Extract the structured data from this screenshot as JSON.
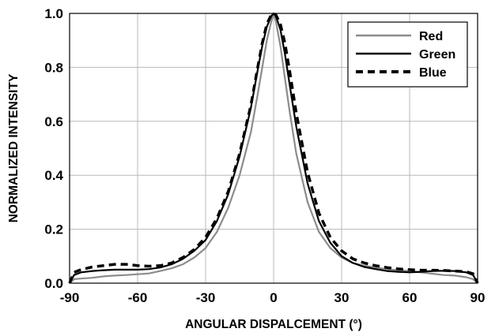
{
  "chart_data": {
    "type": "line",
    "title": "",
    "xlabel": "ANGULAR DISPALCEMENT (°)",
    "ylabel": "NORMALIZED INTENSITY",
    "xlim": [
      -90,
      90
    ],
    "ylim": [
      0,
      1
    ],
    "xticks": [
      "-90",
      "-60",
      "-30",
      "0",
      "30",
      "60",
      "90"
    ],
    "yticks": [
      "0.0",
      "0.2",
      "0.4",
      "0.6",
      "0.8",
      "1.0"
    ],
    "grid": true,
    "legend_position": "top-right",
    "series": [
      {
        "name": "Red",
        "color": "#8c8c8c",
        "style": "solid",
        "x": [
          -90,
          -88,
          -85,
          -80,
          -75,
          -70,
          -65,
          -60,
          -55,
          -50,
          -45,
          -40,
          -35,
          -30,
          -25,
          -20,
          -15,
          -10,
          -7,
          -5,
          -3,
          -1,
          0,
          1,
          3,
          5,
          7,
          10,
          15,
          20,
          25,
          30,
          35,
          40,
          45,
          50,
          55,
          60,
          65,
          70,
          75,
          80,
          85,
          88,
          90
        ],
        "y": [
          0.0,
          0.015,
          0.017,
          0.02,
          0.025,
          0.028,
          0.03,
          0.033,
          0.036,
          0.045,
          0.055,
          0.07,
          0.095,
          0.13,
          0.19,
          0.28,
          0.4,
          0.56,
          0.7,
          0.8,
          0.9,
          0.97,
          1.0,
          0.97,
          0.88,
          0.76,
          0.64,
          0.48,
          0.3,
          0.19,
          0.13,
          0.095,
          0.075,
          0.065,
          0.058,
          0.052,
          0.048,
          0.045,
          0.04,
          0.035,
          0.03,
          0.028,
          0.022,
          0.015,
          0.0
        ]
      },
      {
        "name": "Green",
        "color": "#000000",
        "style": "solid",
        "x": [
          -90,
          -88,
          -85,
          -80,
          -75,
          -70,
          -65,
          -60,
          -55,
          -50,
          -45,
          -40,
          -35,
          -30,
          -25,
          -20,
          -15,
          -10,
          -7,
          -5,
          -3,
          -1,
          0,
          1,
          3,
          5,
          7,
          10,
          15,
          20,
          25,
          30,
          35,
          40,
          45,
          50,
          55,
          60,
          65,
          70,
          75,
          80,
          85,
          88,
          90
        ],
        "y": [
          0.0,
          0.03,
          0.04,
          0.045,
          0.048,
          0.05,
          0.05,
          0.05,
          0.052,
          0.058,
          0.07,
          0.09,
          0.12,
          0.16,
          0.23,
          0.33,
          0.47,
          0.65,
          0.79,
          0.88,
          0.95,
          0.99,
          1.0,
          0.99,
          0.94,
          0.85,
          0.74,
          0.58,
          0.37,
          0.23,
          0.15,
          0.1,
          0.075,
          0.06,
          0.052,
          0.045,
          0.042,
          0.04,
          0.042,
          0.045,
          0.046,
          0.045,
          0.04,
          0.03,
          0.0
        ]
      },
      {
        "name": "Blue",
        "color": "#000000",
        "style": "dashed",
        "x": [
          -90,
          -88,
          -85,
          -80,
          -75,
          -70,
          -65,
          -60,
          -55,
          -50,
          -45,
          -40,
          -35,
          -30,
          -25,
          -20,
          -15,
          -10,
          -7,
          -5,
          -3,
          -1,
          0,
          1,
          3,
          5,
          7,
          10,
          15,
          20,
          25,
          30,
          35,
          40,
          45,
          50,
          55,
          60,
          65,
          70,
          75,
          80,
          85,
          88,
          90
        ],
        "y": [
          0.0,
          0.04,
          0.05,
          0.06,
          0.065,
          0.07,
          0.07,
          0.065,
          0.063,
          0.065,
          0.075,
          0.095,
          0.125,
          0.17,
          0.24,
          0.34,
          0.48,
          0.66,
          0.8,
          0.89,
          0.96,
          0.995,
          1.0,
          0.995,
          0.96,
          0.89,
          0.79,
          0.63,
          0.41,
          0.26,
          0.17,
          0.12,
          0.09,
          0.075,
          0.065,
          0.058,
          0.053,
          0.05,
          0.048,
          0.048,
          0.047,
          0.045,
          0.042,
          0.035,
          0.0
        ]
      }
    ]
  }
}
